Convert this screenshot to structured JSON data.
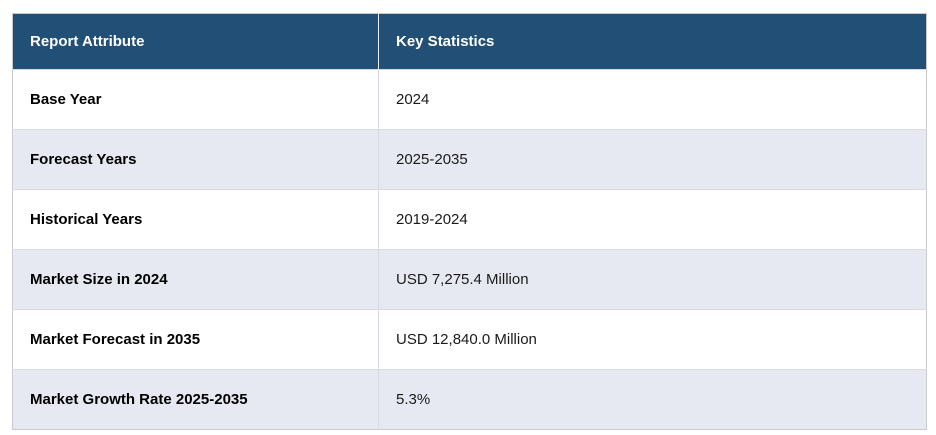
{
  "table": {
    "columns": [
      {
        "label": "Report Attribute"
      },
      {
        "label": "Key Statistics"
      }
    ],
    "rows": [
      {
        "attribute": "Base Year",
        "value": "2024"
      },
      {
        "attribute": "Forecast Years",
        "value": "2025-2035"
      },
      {
        "attribute": "Historical Years",
        "value": "2019-2024"
      },
      {
        "attribute": "Market Size in 2024",
        "value": "USD 7,275.4 Million"
      },
      {
        "attribute": "Market Forecast in 2035",
        "value": "USD 12,840.0 Million"
      },
      {
        "attribute": "Market Growth Rate 2025-2035",
        "value": "5.3%"
      }
    ],
    "colors": {
      "header_bg": "#224f75",
      "header_text": "#ffffff",
      "row_bg": "#ffffff",
      "row_alt_bg": "#e7e9f2",
      "outer_border": "#c9c9cc",
      "row_divider": "#d8d9e3",
      "attribute_text": "#000000",
      "value_text": "#1a1a1a"
    }
  },
  "chart_data": {
    "type": "table",
    "title": "Report Attribute / Key Statistics",
    "columns": [
      "Report Attribute",
      "Key Statistics"
    ],
    "rows": [
      [
        "Base Year",
        "2024"
      ],
      [
        "Forecast Years",
        "2025-2035"
      ],
      [
        "Historical Years",
        "2019-2024"
      ],
      [
        "Market Size in 2024",
        "USD 7,275.4 Million"
      ],
      [
        "Market Forecast in 2035",
        "USD 12,840.0 Million"
      ],
      [
        "Market Growth Rate 2025-2035",
        "5.3%"
      ]
    ]
  }
}
